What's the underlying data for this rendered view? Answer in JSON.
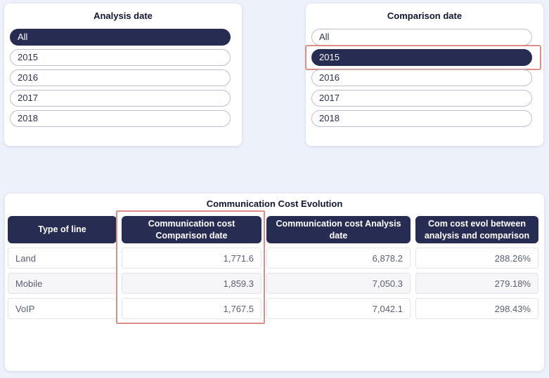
{
  "colors": {
    "page_background": "#ECF1FA",
    "accent_navy": "#272C52",
    "highlight_red": "#DD8E88",
    "alt_row_background": "#F6F6F8"
  },
  "slicers": [
    {
      "title": "Analysis date",
      "items": [
        {
          "label": "All",
          "selected": true,
          "highlighted": false
        },
        {
          "label": "2015",
          "selected": false,
          "highlighted": false
        },
        {
          "label": "2016",
          "selected": false,
          "highlighted": false
        },
        {
          "label": "2017",
          "selected": false,
          "highlighted": false
        },
        {
          "label": "2018",
          "selected": false,
          "highlighted": false
        }
      ]
    },
    {
      "title": "Comparison date",
      "items": [
        {
          "label": "All",
          "selected": false,
          "highlighted": false
        },
        {
          "label": "2015",
          "selected": true,
          "highlighted": true
        },
        {
          "label": "2016",
          "selected": false,
          "highlighted": false
        },
        {
          "label": "2017",
          "selected": false,
          "highlighted": false
        },
        {
          "label": "2018",
          "selected": false,
          "highlighted": false
        }
      ]
    }
  ],
  "table": {
    "title": "Communication Cost Evolution",
    "columns": [
      {
        "label": "Type of line",
        "highlighted": false
      },
      {
        "label": "Communication cost Comparison date",
        "highlighted": true
      },
      {
        "label": "Communication cost Analysis date",
        "highlighted": false
      },
      {
        "label": "Com cost evol between analysis and comparison",
        "highlighted": false
      }
    ],
    "rows": [
      {
        "cells": [
          "Land",
          "1,771.6",
          "6,878.2",
          "288.26%"
        ]
      },
      {
        "cells": [
          "Mobile",
          "1,859.3",
          "7,050.3",
          "279.18%"
        ]
      },
      {
        "cells": [
          "VoIP",
          "1,767.5",
          "7,042.1",
          "298.43%"
        ]
      }
    ]
  }
}
